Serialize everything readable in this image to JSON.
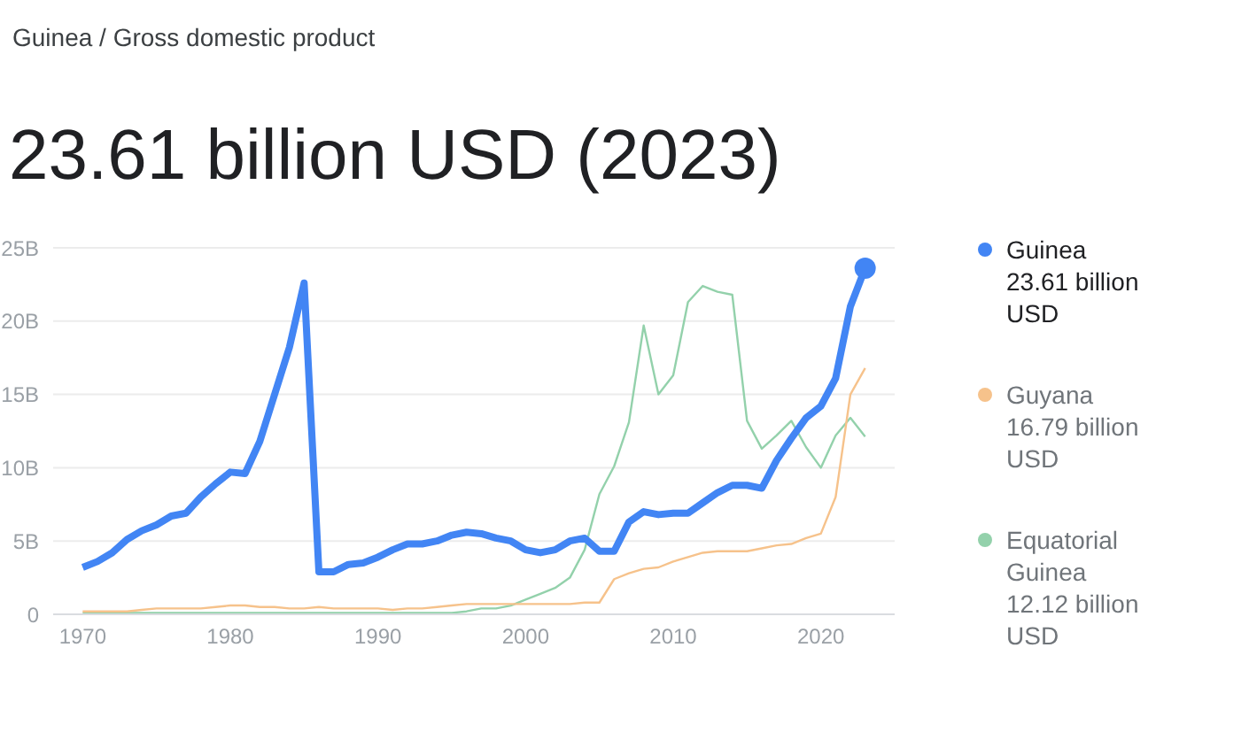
{
  "chart_data": {
    "type": "line",
    "subtitle": "Guinea / Gross domestic product",
    "title": "23.61 billion USD (2023)",
    "x": [
      1970,
      1971,
      1972,
      1973,
      1974,
      1975,
      1976,
      1977,
      1978,
      1979,
      1980,
      1981,
      1982,
      1983,
      1984,
      1985,
      1986,
      1987,
      1988,
      1989,
      1990,
      1991,
      1992,
      1993,
      1994,
      1995,
      1996,
      1997,
      1998,
      1999,
      2000,
      2001,
      2002,
      2003,
      2004,
      2005,
      2006,
      2007,
      2008,
      2009,
      2010,
      2011,
      2012,
      2013,
      2014,
      2015,
      2016,
      2017,
      2018,
      2019,
      2020,
      2021,
      2022,
      2023
    ],
    "series": [
      {
        "name": "Guinea",
        "color": "#4285f4",
        "values": [
          3.2,
          3.6,
          4.2,
          5.1,
          5.7,
          6.1,
          6.7,
          6.9,
          8.0,
          8.9,
          9.7,
          9.6,
          11.8,
          15.0,
          18.2,
          22.6,
          2.9,
          2.9,
          3.4,
          3.5,
          3.9,
          4.4,
          4.8,
          4.8,
          5.0,
          5.4,
          5.6,
          5.5,
          5.2,
          5.0,
          4.4,
          4.2,
          4.4,
          5.0,
          5.2,
          4.3,
          4.3,
          6.3,
          7.0,
          6.8,
          6.9,
          6.9,
          7.6,
          8.3,
          8.8,
          8.8,
          8.6,
          10.5,
          12.0,
          13.4,
          14.2,
          16.1,
          21.0,
          23.61
        ]
      },
      {
        "name": "Guyana",
        "color": "#f6c28b",
        "values": [
          0.2,
          0.2,
          0.2,
          0.2,
          0.3,
          0.4,
          0.4,
          0.4,
          0.4,
          0.5,
          0.6,
          0.6,
          0.5,
          0.5,
          0.4,
          0.4,
          0.5,
          0.4,
          0.4,
          0.4,
          0.4,
          0.3,
          0.4,
          0.4,
          0.5,
          0.6,
          0.7,
          0.7,
          0.7,
          0.7,
          0.7,
          0.7,
          0.7,
          0.7,
          0.8,
          0.8,
          2.4,
          2.8,
          3.1,
          3.2,
          3.6,
          3.9,
          4.2,
          4.3,
          4.3,
          4.3,
          4.5,
          4.7,
          4.8,
          5.2,
          5.5,
          8.0,
          15.0,
          16.79
        ]
      },
      {
        "name": "Equatorial Guinea",
        "color": "#93d1ab",
        "values": [
          0.1,
          0.1,
          0.1,
          0.1,
          0.1,
          0.1,
          0.1,
          0.1,
          0.1,
          0.1,
          0.1,
          0.1,
          0.1,
          0.1,
          0.1,
          0.1,
          0.1,
          0.1,
          0.1,
          0.1,
          0.1,
          0.1,
          0.1,
          0.1,
          0.1,
          0.1,
          0.2,
          0.4,
          0.4,
          0.6,
          1.0,
          1.4,
          1.8,
          2.5,
          4.4,
          8.2,
          10.1,
          13.1,
          19.7,
          15.0,
          16.3,
          21.3,
          22.4,
          22.0,
          21.8,
          13.2,
          11.3,
          12.2,
          13.2,
          11.4,
          10.0,
          12.2,
          13.4,
          12.12
        ]
      }
    ],
    "annotations": [
      "23.61 billion USD",
      "16.79 billion USD",
      "12.12 billion USD"
    ],
    "xlim": [
      1968,
      2025
    ],
    "xticks": [
      1970,
      1980,
      1990,
      2000,
      2010,
      2020
    ],
    "ylim": [
      0,
      25
    ],
    "yticks": [
      0,
      {
        "value": 5,
        "label": "5B"
      },
      {
        "value": 10,
        "label": "10B"
      },
      {
        "value": 15,
        "label": "15B"
      },
      {
        "value": 20,
        "label": "20B"
      },
      {
        "value": 25,
        "label": "25B"
      }
    ],
    "grid": "y",
    "legend": "right",
    "marker": "none",
    "line_style": "solid"
  }
}
